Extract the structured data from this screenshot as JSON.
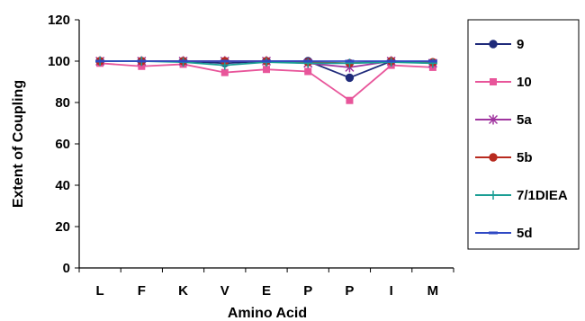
{
  "chart_data": {
    "type": "line",
    "title": "",
    "xlabel": "Amino Acid",
    "ylabel": "Extent of Coupling",
    "ylim": [
      0,
      120
    ],
    "yticks": [
      0,
      20,
      40,
      60,
      80,
      100,
      120
    ],
    "categories": [
      "L",
      "F",
      "K",
      "V",
      "E",
      "P",
      "P",
      "I",
      "M"
    ],
    "grid": false,
    "legend_position": "right",
    "series": [
      {
        "name": "9",
        "color": "#1f2a7a",
        "marker": "circle",
        "values": [
          100,
          100,
          100,
          99,
          100,
          100,
          92,
          100,
          99
        ]
      },
      {
        "name": "10",
        "color": "#e8559a",
        "marker": "square",
        "values": [
          99,
          97.5,
          98.5,
          94.5,
          96,
          95,
          81,
          98,
          97
        ]
      },
      {
        "name": "5a",
        "color": "#a0359f",
        "marker": "star",
        "values": [
          100,
          100,
          100,
          100,
          100,
          99,
          97,
          100,
          99
        ]
      },
      {
        "name": "5b",
        "color": "#b82a1f",
        "marker": "circle",
        "values": [
          100,
          100,
          100,
          100,
          100,
          99.5,
          99,
          100,
          99.5
        ]
      },
      {
        "name": "7/1DIEA",
        "color": "#1a9e94",
        "marker": "plus",
        "values": [
          100,
          100,
          99.5,
          98,
          99.5,
          99,
          99,
          99.5,
          99
        ]
      },
      {
        "name": "5d",
        "color": "#2f49c4",
        "marker": "dash",
        "values": [
          100,
          100,
          100,
          100,
          100,
          100,
          100,
          100,
          100
        ]
      }
    ]
  }
}
